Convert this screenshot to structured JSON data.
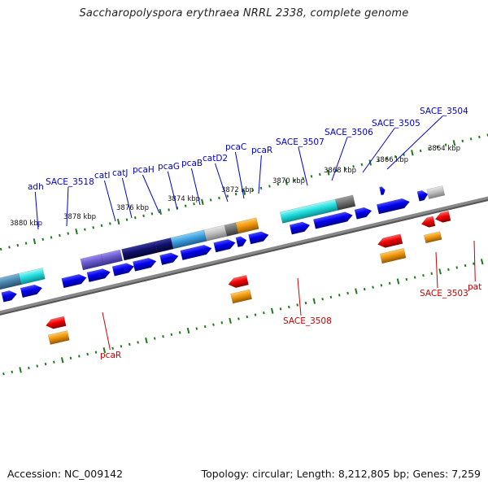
{
  "title": "Saccharopolyspora erythraea NRRL 2338, complete genome",
  "accession": "Accession: NC_009142",
  "topology": "Topology: circular; Length: 8,212,805 bp; Genes: 7,259",
  "colors": {
    "forward_gene": "#0000ee",
    "reverse_gene": "#ee0000",
    "forward_label": "#0000cc",
    "reverse_label": "#cc0000",
    "ruler_tick": "#1f7a1f",
    "backbone": "#888888"
  },
  "ruler": {
    "labels": [
      "3880 kbp",
      "3878 kbp",
      "3876 kbp",
      "3874 kbp",
      "3872 kbp",
      "3870 kbp",
      "3868 kbp",
      "3866 kbp",
      "3864 kbp"
    ]
  },
  "forward_labels": [
    "adh",
    "SACE_3518",
    "catI",
    "catJ",
    "pcaH",
    "pcaG",
    "pcaB",
    "catD2",
    "pcaC",
    "pcaR",
    "SACE_3507",
    "SACE_3506",
    "SACE_3505",
    "SACE_3504"
  ],
  "reverse_labels": [
    "pcaR",
    "SACE_3508",
    "SACE_3503",
    "pat"
  ]
}
